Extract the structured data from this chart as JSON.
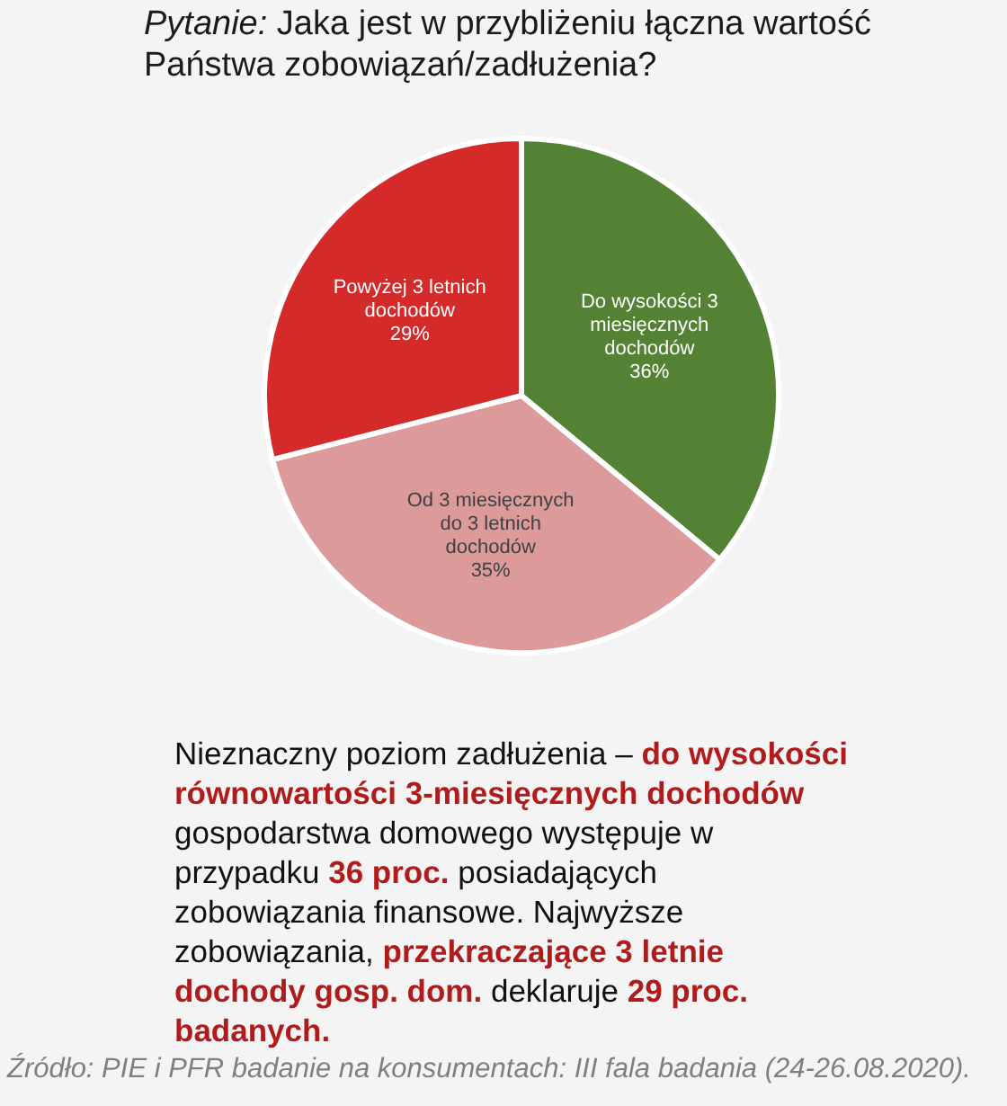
{
  "chart_data": {
    "type": "pie",
    "title": "Pytanie: Jaka jest w przybliżeniu łączna wartość Państwa zobowiązań/zadłużenia?",
    "categories": [
      "Do wysokości 3 miesięcznych dochodów",
      "Od 3 miesięcznych do 3 letnich dochodów",
      "Powyżej 3 letnich dochodów"
    ],
    "values": [
      36,
      35,
      29
    ],
    "colors": [
      "#548235",
      "#dc9a9a",
      "#d42a2a"
    ],
    "value_labels": [
      "36%",
      "35%",
      "29%"
    ],
    "annotations": [
      "Nieznaczny poziom zadłużenia – ",
      "do wysokości równowartości 3-miesięcznych dochodów",
      " gospodarstwa domowego występuje w przypadku ",
      "36 proc.",
      " posiadających zobowiązania finansowe. Najwyższe zobowiązania, ",
      "przekraczające 3 letnie dochody gosp. dom.",
      " deklaruje ",
      "29 proc. badanych.",
      "Źródło: PIE i PFR badanie na konsumentach: III fala badania (24-26.08.2020)."
    ]
  }
}
